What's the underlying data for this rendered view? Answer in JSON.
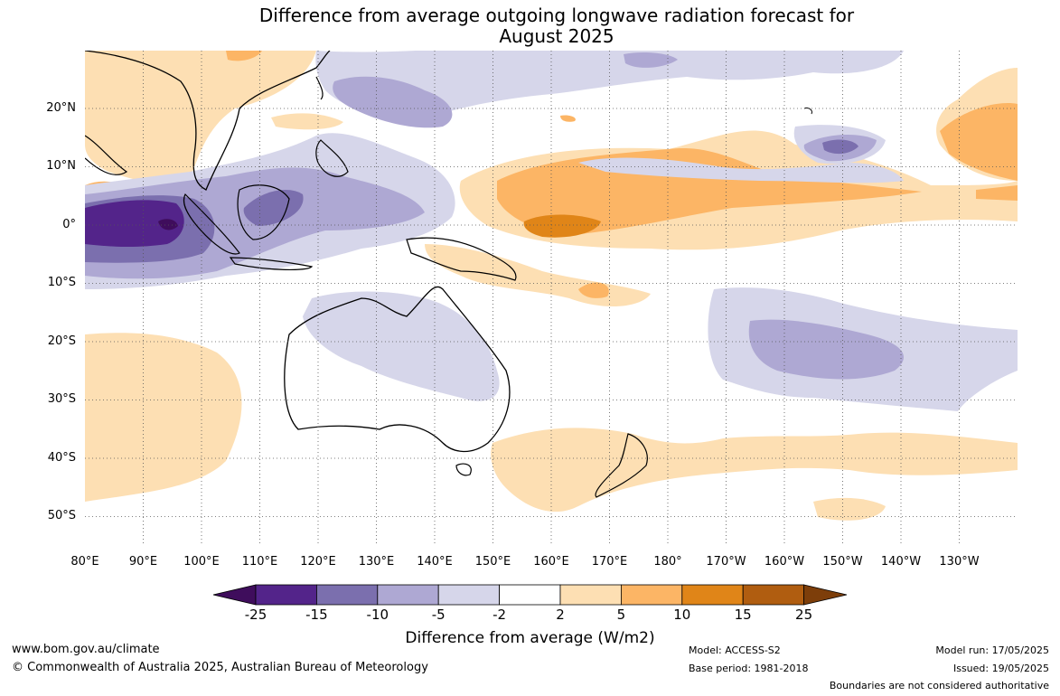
{
  "title": {
    "line1": "Difference from average outgoing longwave radiation forecast for",
    "line2": "August 2025"
  },
  "lat_labels": [
    "20°N",
    "10°N",
    "0°",
    "10°S",
    "20°S",
    "30°S",
    "40°S",
    "50°S"
  ],
  "lon_labels": [
    "80°E",
    "90°E",
    "100°E",
    "110°E",
    "120°E",
    "130°E",
    "140°E",
    "150°E",
    "160°E",
    "170°E",
    "180°",
    "170°W",
    "160°W",
    "150°W",
    "140°W",
    "130°W"
  ],
  "colorbar": {
    "ticks": [
      "-25",
      "-15",
      "-10",
      "-5",
      "-2",
      "2",
      "5",
      "10",
      "15",
      "25"
    ],
    "colors": [
      "#3f0d5c",
      "#53248a",
      "#7b6fae",
      "#aea8d3",
      "#d6d6ea",
      "#ffffff",
      "#fddfb3",
      "#fcb565",
      "#e08518",
      "#b05d10",
      "#7d3e0a"
    ],
    "title": "Difference from average (W/m2)"
  },
  "footer": {
    "website": "www.bom.gov.au/climate",
    "copyright": "© Commonwealth of Australia 2025, Australian Bureau of Meteorology",
    "model": "Model: ACCESS-S2",
    "base_period": "Base period: 1981-2018",
    "model_run": "Model run: 17/05/2025",
    "issued": "Issued: 19/05/2025",
    "disclaimer": "Boundaries are not considered authoritative"
  }
}
